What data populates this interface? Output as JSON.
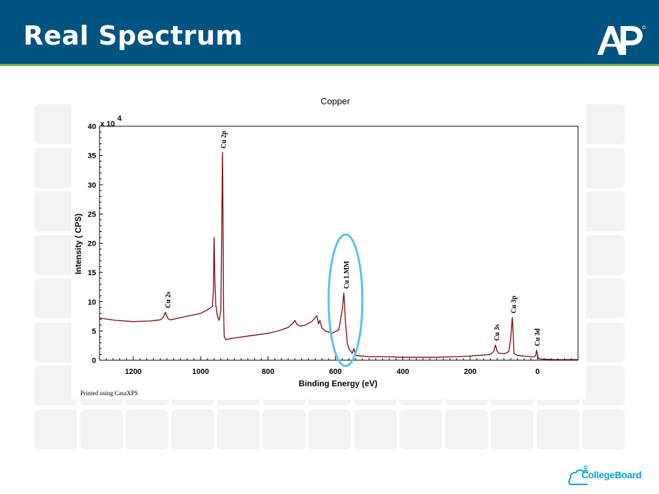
{
  "slide": {
    "title": "Real Spectrum",
    "footer_note": "Printed using CasaXPS",
    "logo_text": "CollegeBoard",
    "header_color": "#015482",
    "accent_color": "#6ab04c"
  },
  "chart_data": {
    "type": "line",
    "title": "Copper",
    "xlabel": "Binding Energy (eV)",
    "ylabel": "Intensity ( CPS)",
    "y_multiplier_label": "x 10",
    "y_multiplier_exp": "4",
    "xlim": [
      1300,
      -120
    ],
    "x_reversed": true,
    "ylim": [
      0,
      40
    ],
    "x_ticks": [
      1200,
      1000,
      800,
      600,
      400,
      200,
      0
    ],
    "y_ticks": [
      0,
      5,
      10,
      15,
      20,
      25,
      30,
      35,
      40
    ],
    "line_color": "#7a0000",
    "series": [
      {
        "x": [
          1300,
          1250,
          1200,
          1150,
          1120,
          1110,
          1105,
          1100,
          1095,
          1090,
          1080,
          1050,
          1000,
          980,
          965,
          962,
          960,
          958,
          955,
          950,
          945,
          940,
          935,
          933,
          932,
          930,
          925,
          920,
          900,
          850,
          800,
          770,
          740,
          725,
          720,
          715,
          705,
          690,
          670,
          655,
          650,
          646,
          640,
          630,
          610,
          590,
          580,
          575,
          570,
          565,
          560,
          550,
          545,
          540,
          500,
          450,
          400,
          350,
          300,
          250,
          200,
          180,
          160,
          140,
          130,
          125,
          120,
          115,
          100,
          90,
          85,
          80,
          75,
          72,
          70,
          60,
          40,
          20,
          10,
          5,
          3,
          0,
          -2,
          -10,
          -50,
          -100,
          -120
        ],
        "y": [
          7.2,
          6.8,
          6.6,
          6.7,
          6.9,
          7.4,
          8.2,
          7.5,
          7.0,
          6.9,
          7.0,
          7.4,
          8.0,
          8.6,
          9.2,
          12.0,
          21.0,
          14.0,
          9.5,
          7.5,
          6.8,
          8.5,
          35.5,
          20.0,
          9.0,
          4.0,
          3.5,
          3.6,
          3.8,
          4.2,
          4.6,
          5.0,
          5.6,
          6.4,
          6.8,
          6.2,
          5.8,
          6.0,
          6.6,
          7.6,
          6.2,
          6.8,
          5.5,
          5.0,
          4.6,
          5.2,
          8.5,
          11.5,
          6.5,
          3.0,
          2.0,
          1.2,
          2.0,
          0.8,
          0.6,
          0.6,
          0.5,
          0.5,
          0.5,
          0.6,
          0.7,
          0.8,
          0.9,
          1.0,
          1.5,
          2.6,
          1.5,
          1.2,
          1.1,
          1.3,
          1.6,
          3.5,
          7.3,
          4.0,
          1.2,
          0.8,
          0.7,
          0.6,
          0.6,
          0.8,
          1.7,
          1.0,
          0.3,
          0.2,
          0.1,
          0.1,
          0.1
        ]
      }
    ],
    "annotations": [
      {
        "text": "Cu 2p",
        "x": 933,
        "y": 35.5
      },
      {
        "text": "Cu 2s",
        "x": 1098,
        "y": 8.2
      },
      {
        "text": "Cu LMM",
        "x": 569,
        "y": 11.5
      },
      {
        "text": "Cu 3s",
        "x": 122,
        "y": 2.6
      },
      {
        "text": "Cu 3p",
        "x": 73,
        "y": 7.3
      },
      {
        "text": "Cu 3d",
        "x": 2,
        "y": 1.7
      }
    ],
    "highlight": {
      "shape": "ellipse",
      "x_range": [
        520,
        620
      ],
      "y_range": [
        -1,
        21.5
      ],
      "color": "#55c2f0"
    }
  }
}
